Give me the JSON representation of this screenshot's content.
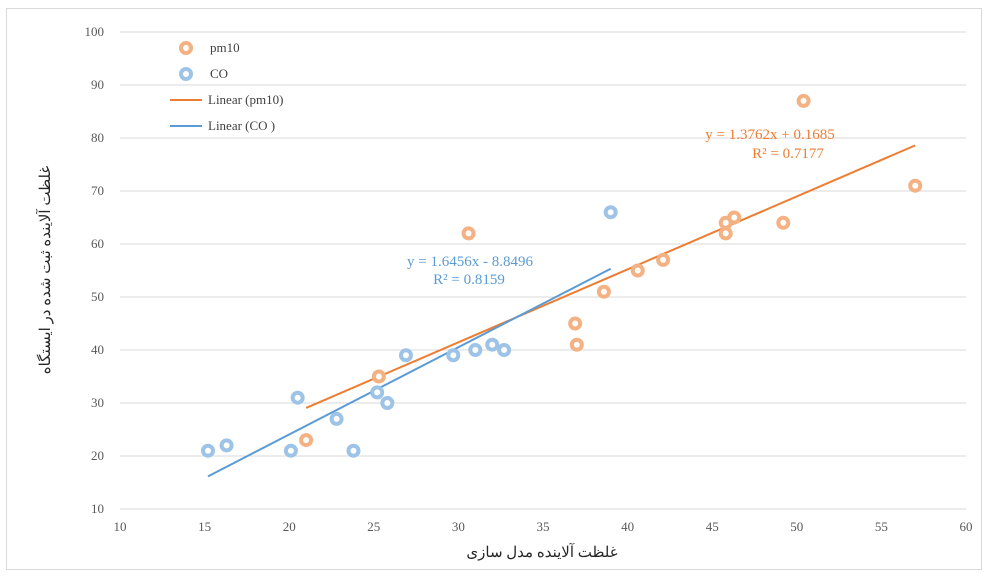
{
  "chart_data": {
    "type": "scatter",
    "xlabel": "غلظت آلاینده مدل سازی",
    "ylabel": "غلظت آلاینده ثبت شده در ایستگاه",
    "xlim": [
      10,
      60
    ],
    "ylim": [
      10,
      100
    ],
    "xticks": [
      "10",
      "15",
      "20",
      "25",
      "30",
      "35",
      "40",
      "45",
      "50",
      "55",
      "60"
    ],
    "yticks": [
      "10",
      "20",
      "30",
      "40",
      "50",
      "60",
      "70",
      "80",
      "90",
      "100"
    ],
    "grid": "horizontal",
    "legend_position": "top-left",
    "legend": [
      "pm10",
      "CO",
      "Linear (pm10)",
      "Linear (CO )"
    ],
    "series": [
      {
        "name": "pm10",
        "color": "#ed7d31",
        "points": [
          [
            21,
            23
          ],
          [
            25.3,
            35
          ],
          [
            30.6,
            62
          ],
          [
            36.9,
            45
          ],
          [
            37,
            41
          ],
          [
            38.6,
            51
          ],
          [
            40.6,
            55
          ],
          [
            42.1,
            57
          ],
          [
            45.8,
            64
          ],
          [
            45.8,
            62
          ],
          [
            46.3,
            65
          ],
          [
            49.2,
            64
          ],
          [
            50.4,
            87
          ],
          [
            57,
            71
          ]
        ],
        "trendline": {
          "slope": 1.3762,
          "intercept": 0.1685,
          "x_range": [
            21,
            57
          ]
        },
        "equation": "y = 1.3762x + 0.1685",
        "r2": "R² = 0.7177"
      },
      {
        "name": "CO",
        "color": "#5b9bd5",
        "points": [
          [
            15.2,
            21
          ],
          [
            16.3,
            22
          ],
          [
            20.1,
            21
          ],
          [
            20.5,
            31
          ],
          [
            22.8,
            27
          ],
          [
            23.8,
            21
          ],
          [
            25.2,
            32
          ],
          [
            25.8,
            30
          ],
          [
            26.9,
            39
          ],
          [
            29.7,
            39
          ],
          [
            31,
            40
          ],
          [
            32,
            41
          ],
          [
            32.7,
            40
          ],
          [
            39,
            66
          ]
        ],
        "trendline": {
          "slope": 1.6456,
          "intercept": -8.8496,
          "x_range": [
            15.2,
            39
          ]
        },
        "equation": "y = 1.6456x - 8.8496",
        "r2": "R² = 0.8159"
      }
    ]
  }
}
